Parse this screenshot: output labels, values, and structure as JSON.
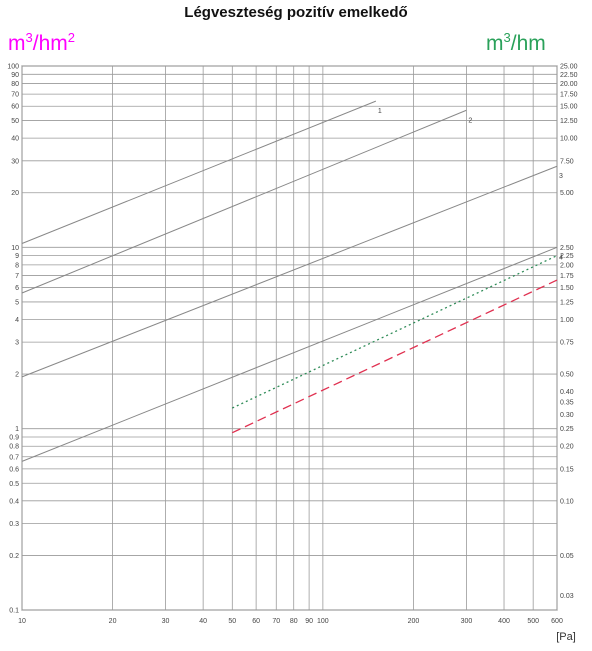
{
  "chart_data": {
    "type": "line",
    "title": "Légveszteség pozitív emelkedő",
    "y_left_unit": "m3/hm2",
    "y_right_unit": "m3/hm",
    "x_unit": "[Pa]",
    "x_scale": "log",
    "y_scale": "log",
    "xlim": [
      10,
      600
    ],
    "ylim_left": [
      0.1,
      100
    ],
    "ylim_right": [
      0.025,
      25
    ],
    "x_ticks": [
      10,
      20,
      30,
      40,
      50,
      60,
      70,
      80,
      90,
      100,
      200,
      300,
      400,
      500,
      600
    ],
    "y_left_ticks": [
      0.1,
      0.2,
      0.3,
      0.4,
      0.5,
      0.6,
      0.7,
      0.8,
      0.9,
      1,
      2,
      3,
      4,
      5,
      6,
      7,
      8,
      9,
      10,
      20,
      30,
      40,
      50,
      60,
      70,
      80,
      90,
      100
    ],
    "y_right_ticks": [
      0.03,
      0.05,
      0.1,
      0.15,
      0.2,
      0.25,
      0.3,
      0.35,
      0.4,
      0.5,
      0.75,
      1.0,
      1.25,
      1.5,
      1.75,
      2.0,
      2.25,
      2.5,
      5.0,
      7.5,
      10.0,
      12.5,
      15.0,
      17.5,
      20.0,
      22.5,
      25.0
    ],
    "grid": true,
    "series": [
      {
        "name": "1",
        "x": [
          10,
          150
        ],
        "y": [
          10.5,
          64
        ],
        "color": "#888888",
        "style": "solid"
      },
      {
        "name": "2",
        "x": [
          10,
          300
        ],
        "y": [
          5.6,
          57
        ],
        "color": "#888888",
        "style": "solid"
      },
      {
        "name": "3",
        "x": [
          10,
          600
        ],
        "y": [
          1.93,
          28
        ],
        "color": "#888888",
        "style": "solid"
      },
      {
        "name": "4",
        "x": [
          10,
          600
        ],
        "y": [
          0.66,
          10
        ],
        "color": "#888888",
        "style": "solid"
      },
      {
        "name": "",
        "x": [
          50,
          600
        ],
        "y": [
          1.3,
          9
        ],
        "color": "#2e8b57",
        "style": "dotted"
      },
      {
        "name": "",
        "x": [
          50,
          600
        ],
        "y": [
          0.95,
          6.6
        ],
        "color": "#e03050",
        "style": "dashed"
      }
    ],
    "curve_labels": [
      "1",
      "2",
      "3",
      "4"
    ]
  }
}
